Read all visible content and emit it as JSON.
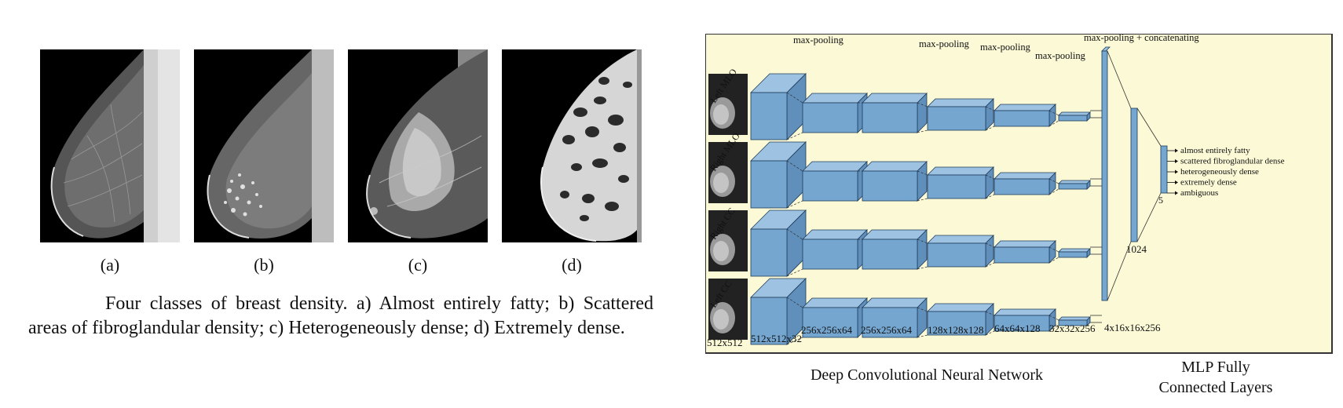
{
  "figure_left": {
    "panels": [
      {
        "label": "(a)",
        "density": "fatty"
      },
      {
        "label": "(b)",
        "density": "scattered"
      },
      {
        "label": "(c)",
        "density": "heterogeneous"
      },
      {
        "label": "(d)",
        "density": "extreme"
      }
    ],
    "caption": "Four classes of breast density. a) Almost entirely fatty; b) Scattered areas of fibroglandular density; c) Heterogeneously dense; d) Extremely dense."
  },
  "figure_right": {
    "views": [
      "Left MLO",
      "Right MLO",
      "Right CC",
      "Left CC"
    ],
    "pool_labels": [
      "max-pooling",
      "max-pooling",
      "max-pooling",
      "max-pooling",
      "max-pooling + concatenating"
    ],
    "dims": [
      "512x512",
      "512x512x32",
      "256x256x64",
      "256x256x64",
      "128x128x128",
      "64x64x128",
      "32x32x256",
      "4x16x16x256",
      "1024",
      "5"
    ],
    "classes": [
      "almost entirely fatty",
      "scattered fibroglandular dense",
      "heterogeneously dense",
      "extremely dense",
      "ambiguous"
    ],
    "cnn_title": "Deep Convolutional Neural Network",
    "mlp_title_line1": "MLP Fully",
    "mlp_title_line2": "Connected Layers",
    "colors": {
      "panel_bg": "#fbf9d6",
      "block_front": "#74a6d0",
      "block_top": "#9ec3e2",
      "block_side": "#5f8fba",
      "edge": "#1f3b5a"
    }
  }
}
